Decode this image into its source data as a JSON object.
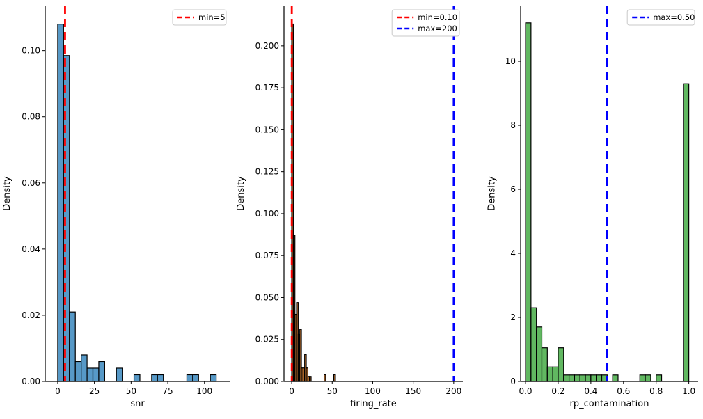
{
  "figure": {
    "background": "#ffffff",
    "description": "Three density histograms with threshold lines"
  },
  "chart_data": [
    {
      "type": "bar",
      "variant": "histogram",
      "title": "",
      "xlabel": "snr",
      "ylabel": "Density",
      "bar_color": "#5799c7",
      "bar_edge_color": "#000000",
      "grid": false,
      "legend_position": "upper right",
      "xlim": [
        -8.5,
        117.2
      ],
      "ylim": [
        0,
        0.1136
      ],
      "bins": {
        "start": 0,
        "width": 4,
        "densities": [
          0.108,
          0.0985,
          0.021,
          0.006,
          0.008,
          0.004,
          0.004,
          0.006,
          0,
          0,
          0.004,
          0,
          0,
          0.002,
          0,
          0,
          0.002,
          0.002,
          0,
          0,
          0,
          0,
          0.002,
          0.002,
          0,
          0,
          0.002
        ]
      },
      "xticks": {
        "values": [
          0,
          25,
          50,
          75,
          100
        ],
        "labels": [
          "0",
          "25",
          "50",
          "75",
          "100"
        ]
      },
      "yticks": {
        "values": [
          0,
          0.02,
          0.04,
          0.06,
          0.08,
          0.1
        ],
        "labels": [
          "0.00",
          "0.02",
          "0.04",
          "0.06",
          "0.08",
          "0.10"
        ]
      },
      "vlines": [
        {
          "x": 5,
          "color": "#ff0000",
          "style": "dashed",
          "label": "min=5"
        }
      ]
    },
    {
      "type": "bar",
      "variant": "histogram",
      "title": "",
      "xlabel": "firing_rate",
      "ylabel": "Density",
      "bar_color": "#a86428",
      "bar_edge_color": "#000000",
      "grid": false,
      "legend_position": "upper right",
      "xlim": [
        -9.5,
        211.3
      ],
      "ylim": [
        0,
        0.224
      ],
      "bins": {
        "start": 0,
        "width": 2,
        "densities": [
          0.213,
          0.087,
          0.04,
          0.047,
          0.028,
          0.031,
          0.008,
          0.008,
          0.016,
          0.008,
          0.003,
          0.003,
          0,
          0,
          0,
          0,
          0,
          0,
          0,
          0,
          0.004,
          0,
          0,
          0,
          0,
          0,
          0.004
        ]
      },
      "xticks": {
        "values": [
          0,
          50,
          100,
          150,
          200
        ],
        "labels": [
          "0",
          "50",
          "100",
          "150",
          "200"
        ]
      },
      "yticks": {
        "values": [
          0,
          0.025,
          0.05,
          0.075,
          0.1,
          0.125,
          0.15,
          0.175,
          0.2
        ],
        "labels": [
          "0.000",
          "0.025",
          "0.050",
          "0.075",
          "0.100",
          "0.125",
          "0.150",
          "0.175",
          "0.200"
        ]
      },
      "vlines": [
        {
          "x": 0.1,
          "color": "#ff0000",
          "style": "dashed",
          "label": "min=0.10"
        },
        {
          "x": 200,
          "color": "#0000ff",
          "style": "dashed",
          "label": "max=200"
        }
      ]
    },
    {
      "type": "bar",
      "variant": "histogram",
      "title": "",
      "xlabel": "rp_contamination",
      "ylabel": "Density",
      "bar_color": "#61b861",
      "bar_edge_color": "#000000",
      "grid": false,
      "legend_position": "upper right",
      "xlim": [
        -0.03,
        1.057
      ],
      "ylim": [
        0,
        11.74
      ],
      "bins": {
        "start": 0,
        "width": 0.0333333,
        "densities": [
          11.2,
          2.3,
          1.7,
          1.05,
          0.45,
          0.45,
          1.05,
          0.2,
          0.2,
          0.2,
          0.2,
          0.2,
          0.2,
          0.2,
          0.2,
          0,
          0.2,
          0,
          0,
          0,
          0,
          0.2,
          0.2,
          0,
          0.2,
          0,
          0,
          0,
          0,
          9.3
        ]
      },
      "xticks": {
        "values": [
          0,
          0.2,
          0.4,
          0.6,
          0.8,
          1.0
        ],
        "labels": [
          "0.0",
          "0.2",
          "0.4",
          "0.6",
          "0.8",
          "1.0"
        ]
      },
      "yticks": {
        "values": [
          0,
          2,
          4,
          6,
          8,
          10
        ],
        "labels": [
          "0",
          "2",
          "4",
          "6",
          "8",
          "10"
        ]
      },
      "vlines": [
        {
          "x": 0.5,
          "color": "#0000ff",
          "style": "dashed",
          "label": "max=0.50"
        }
      ]
    }
  ],
  "style": {
    "vline_red": "#ff0000",
    "vline_blue": "#0000ff",
    "legend_border": "#c9c9c9",
    "legend_background": "#ffffff",
    "axis_color": "#000000"
  }
}
